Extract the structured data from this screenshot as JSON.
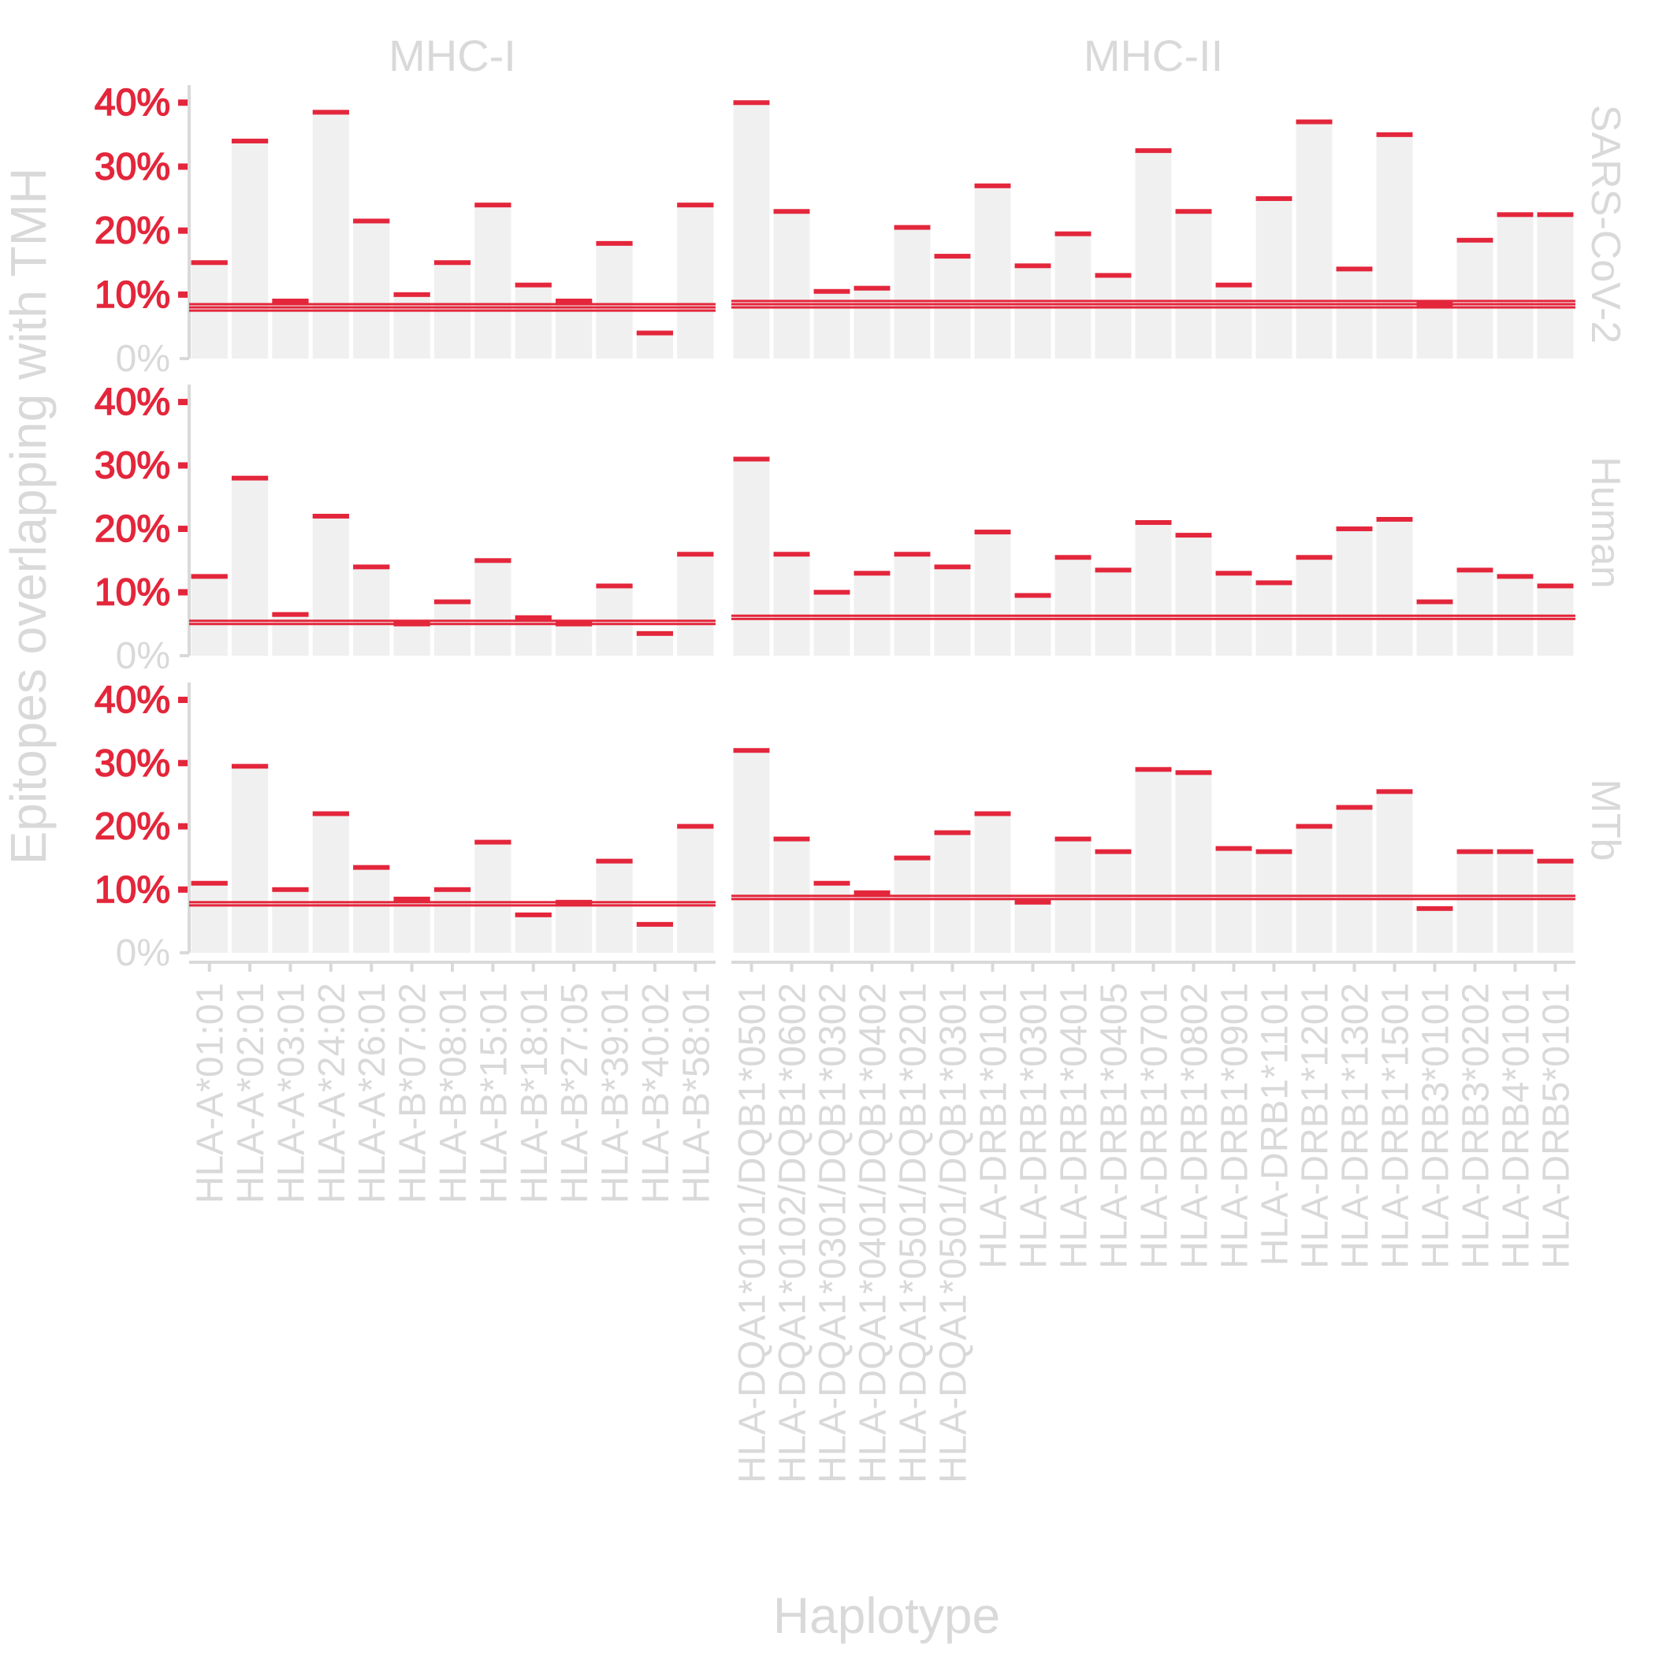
{
  "chart_data": {
    "type": "bar",
    "title": "",
    "xlabel": "Haplotype",
    "ylabel": "Epitopes overlapping with TMH",
    "ylim": [
      0,
      42
    ],
    "y_ticks": [
      "0%",
      "10%",
      "20%",
      "30%",
      "40%"
    ],
    "y_tick_values": [
      0,
      10,
      20,
      30,
      40
    ],
    "columns": [
      {
        "name": "MHC-I",
        "categories": [
          "HLA-A*01:01",
          "HLA-A*02:01",
          "HLA-A*03:01",
          "HLA-A*24:02",
          "HLA-A*26:01",
          "HLA-B*07:02",
          "HLA-B*08:01",
          "HLA-B*15:01",
          "HLA-B*18:01",
          "HLA-B*27:05",
          "HLA-B*39:01",
          "HLA-B*40:02",
          "HLA-B*58:01"
        ]
      },
      {
        "name": "MHC-II",
        "categories": [
          "HLA-DQA1*0101/DQB1*0501",
          "HLA-DQA1*0102/DQB1*0602",
          "HLA-DQA1*0301/DQB1*0302",
          "HLA-DQA1*0401/DQB1*0402",
          "HLA-DQA1*0501/DQB1*0201",
          "HLA-DQA1*0501/DQB1*0301",
          "HLA-DRB1*0101",
          "HLA-DRB1*0301",
          "HLA-DRB1*0401",
          "HLA-DRB1*0405",
          "HLA-DRB1*0701",
          "HLA-DRB1*0802",
          "HLA-DRB1*0901",
          "HLA-DRB1*1101",
          "HLA-DRB1*1201",
          "HLA-DRB1*1302",
          "HLA-DRB1*1501",
          "HLA-DRB3*0101",
          "HLA-DRB3*0202",
          "HLA-DRB4*0101",
          "HLA-DRB5*0101"
        ]
      }
    ],
    "rows": [
      "SARS-CoV-2",
      "Human",
      "MTb"
    ],
    "series": [
      {
        "name": "SARS-CoV-2",
        "panel": "MHC-I",
        "values": [
          15,
          34,
          9,
          38.5,
          21.5,
          10,
          15,
          24,
          11.5,
          9,
          18,
          4,
          24
        ],
        "baseline": [
          7.5,
          8,
          8.5
        ]
      },
      {
        "name": "SARS-CoV-2",
        "panel": "MHC-II",
        "values": [
          40,
          23,
          10.5,
          11,
          20.5,
          16,
          27,
          14.5,
          19.5,
          13,
          32.5,
          23,
          11.5,
          25,
          37,
          14,
          35,
          8.5,
          18.5,
          22.5,
          22.5
        ],
        "baseline": [
          8,
          8.5,
          9
        ]
      },
      {
        "name": "Human",
        "panel": "MHC-I",
        "values": [
          12.5,
          28,
          6.5,
          22,
          14,
          5,
          8.5,
          15,
          6,
          5,
          11,
          3.5,
          16
        ],
        "baseline": [
          5,
          5.5
        ]
      },
      {
        "name": "Human",
        "panel": "MHC-II",
        "values": [
          31,
          16,
          10,
          13,
          16,
          14,
          19.5,
          9.5,
          15.5,
          13.5,
          21,
          19,
          13,
          11.5,
          15.5,
          20,
          21.5,
          8.5,
          13.5,
          12.5,
          11
        ],
        "baseline": [
          5.8,
          6.3
        ]
      },
      {
        "name": "MTb",
        "panel": "MHC-I",
        "values": [
          11,
          29.5,
          10,
          22,
          13.5,
          8.5,
          10,
          17.5,
          6,
          8,
          14.5,
          4.5,
          20
        ],
        "baseline": [
          7.5,
          8
        ]
      },
      {
        "name": "MTb",
        "panel": "MHC-II",
        "values": [
          32,
          18,
          11,
          9.5,
          15,
          19,
          22,
          8,
          18,
          16,
          29,
          28.5,
          16.5,
          16,
          20,
          23,
          25.5,
          7,
          16,
          16,
          14.5
        ],
        "baseline": [
          8.5,
          9
        ]
      }
    ],
    "colors": {
      "bar": "#f0f0f0",
      "marker": "#e3263b",
      "text": "#d9d9d9",
      "tick_label": "#e3263b"
    }
  }
}
